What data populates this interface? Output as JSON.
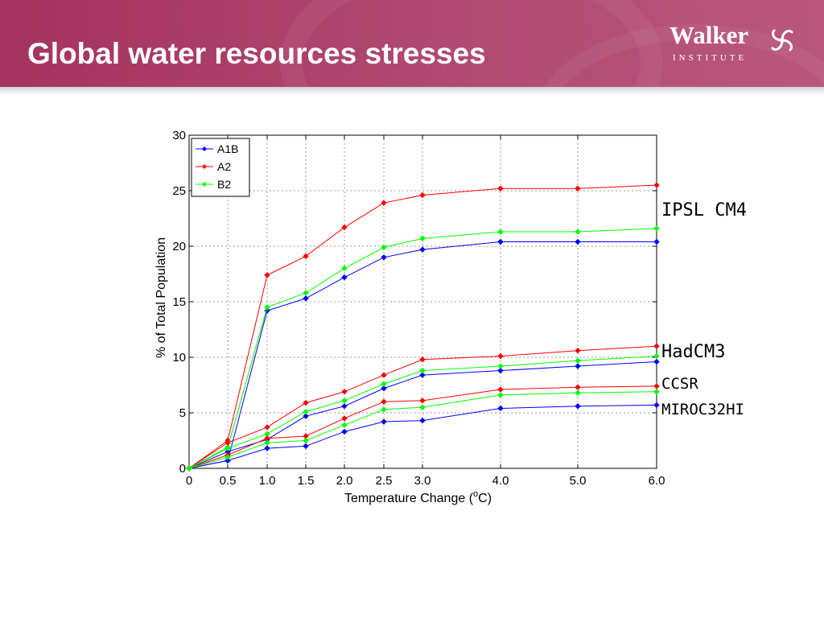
{
  "slide": {
    "title": "Global water resources stresses"
  },
  "logo": {
    "name": "Walker",
    "subtitle": "INSTITUTE"
  },
  "model_labels": [
    "IPSL CM4",
    "HadCM3",
    "CCSR",
    "MIROC32HI"
  ],
  "colors": {
    "A1B": "#0000ff",
    "A2": "#ff0000",
    "B2": "#00ff00"
  },
  "chart_data": {
    "type": "line",
    "xlabel": "Temperature Change (oC)",
    "xlabel_parts": [
      "Temperature Change (",
      "o",
      "C)"
    ],
    "ylabel": "% of Total Population",
    "x_tick_labels": [
      "0",
      "0.5",
      "1.0",
      "1.5",
      "2.0",
      "2.5",
      "3.0",
      "4.0",
      "5.0",
      "6.0"
    ],
    "y_ticks": [
      0,
      5,
      10,
      15,
      20,
      25,
      30
    ],
    "ylim": [
      0,
      30
    ],
    "grid": true,
    "legend": {
      "placement": "top-left",
      "entries": [
        "A1B",
        "A2",
        "B2"
      ]
    },
    "series": [
      {
        "model": "IPSL CM4",
        "name": "A1B",
        "values": [
          0,
          0.7,
          14.2,
          15.3,
          17.2,
          19.0,
          19.7,
          20.4,
          20.4,
          20.4
        ]
      },
      {
        "model": "IPSL CM4",
        "name": "A2",
        "values": [
          0,
          2.5,
          17.4,
          19.1,
          21.7,
          23.9,
          24.6,
          25.2,
          25.2,
          25.5
        ]
      },
      {
        "model": "IPSL CM4",
        "name": "B2",
        "values": [
          0,
          1.9,
          14.5,
          15.8,
          18.0,
          19.9,
          20.7,
          21.3,
          21.3,
          21.6
        ]
      },
      {
        "model": "HadCM3",
        "name": "A1B",
        "values": [
          0,
          1.5,
          2.6,
          4.7,
          5.6,
          7.2,
          8.4,
          8.8,
          9.2,
          9.6
        ]
      },
      {
        "model": "HadCM3",
        "name": "A2",
        "values": [
          0,
          2.3,
          3.7,
          5.9,
          6.9,
          8.4,
          9.8,
          10.1,
          10.6,
          11.0
        ]
      },
      {
        "model": "HadCM3",
        "name": "B2",
        "values": [
          0,
          1.8,
          3.1,
          5.1,
          6.1,
          7.6,
          8.8,
          9.2,
          9.7,
          10.1
        ]
      },
      {
        "model": "CCSR/MIROC32HI",
        "name": "A1B",
        "values": [
          0,
          0.7,
          1.8,
          2.0,
          3.3,
          4.2,
          4.3,
          5.4,
          5.6,
          5.7
        ]
      },
      {
        "model": "CCSR/MIROC32HI",
        "name": "A2",
        "values": [
          0,
          1.2,
          2.7,
          2.9,
          4.5,
          6.0,
          6.1,
          7.1,
          7.3,
          7.4
        ]
      },
      {
        "model": "CCSR/MIROC32HI",
        "name": "B2",
        "values": [
          0,
          1.0,
          2.3,
          2.5,
          3.9,
          5.3,
          5.5,
          6.6,
          6.8,
          6.9
        ]
      }
    ]
  }
}
